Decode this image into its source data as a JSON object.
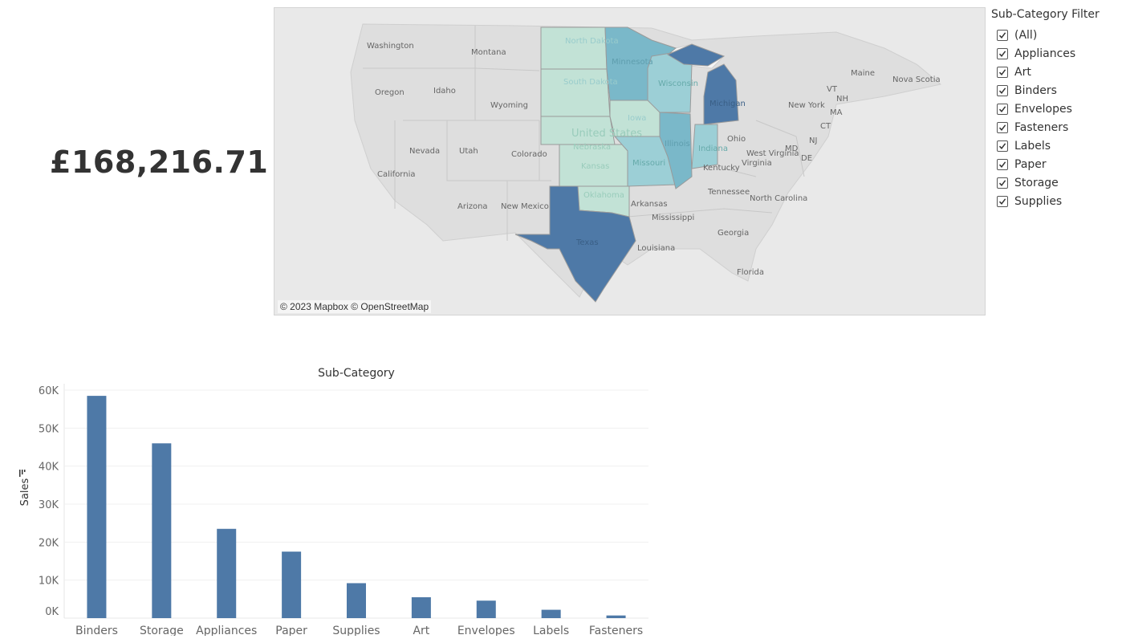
{
  "kpi": {
    "value": "£168,216.71"
  },
  "map": {
    "attribution": "© 2023 Mapbox © OpenStreetMap",
    "place_labels": [
      "Washington",
      "Montana",
      "North Dakota",
      "South Dakota",
      "Minnesota",
      "Wisconsin",
      "Maine",
      "Nova Scotia",
      "Oregon",
      "Idaho",
      "Wyoming",
      "Iowa",
      "Michigan",
      "New York",
      "VT",
      "NH",
      "MA",
      "CT",
      "NJ",
      "MD",
      "DE",
      "Nevada",
      "Utah",
      "Colorado",
      "United States",
      "Nebraska",
      "Illinois",
      "Indiana",
      "Ohio",
      "West Virginia",
      "Virginia",
      "Kentucky",
      "Missouri",
      "California",
      "Kansas",
      "Arizona",
      "New Mexico",
      "Oklahoma",
      "Arkansas",
      "Tennessee",
      "North Carolina",
      "Mississippi",
      "Georgia",
      "Texas",
      "Louisiana",
      "Florida"
    ],
    "colors": {
      "dark": "#4e79a7",
      "mid": "#7ab8c9",
      "light": "#9ccfd6",
      "pale": "#c2e2d6",
      "bg": "#e9e9e9",
      "land": "#dedede"
    }
  },
  "filter": {
    "title": "Sub-Category Filter",
    "items": [
      {
        "label": "(All)",
        "checked": true
      },
      {
        "label": "Appliances",
        "checked": true
      },
      {
        "label": "Art",
        "checked": true
      },
      {
        "label": "Binders",
        "checked": true
      },
      {
        "label": "Envelopes",
        "checked": true
      },
      {
        "label": "Fasteners",
        "checked": true
      },
      {
        "label": "Labels",
        "checked": true
      },
      {
        "label": "Paper",
        "checked": true
      },
      {
        "label": "Storage",
        "checked": true
      },
      {
        "label": "Supplies",
        "checked": true
      }
    ]
  },
  "chart_data": {
    "type": "bar",
    "title": "Sub-Category",
    "ylabel": "Sales",
    "categories": [
      "Binders",
      "Storage",
      "Appliances",
      "Paper",
      "Supplies",
      "Art",
      "Envelopes",
      "Labels",
      "Fasteners"
    ],
    "values": [
      58500,
      46000,
      23500,
      17500,
      9200,
      5500,
      4600,
      2200,
      700
    ],
    "ylim": [
      0,
      60000
    ],
    "yticks": [
      0,
      10000,
      20000,
      30000,
      40000,
      50000,
      60000
    ],
    "ytick_labels": [
      "0K",
      "10K",
      "20K",
      "30K",
      "40K",
      "50K",
      "60K"
    ],
    "bar_color": "#4e79a7",
    "grid": true
  }
}
